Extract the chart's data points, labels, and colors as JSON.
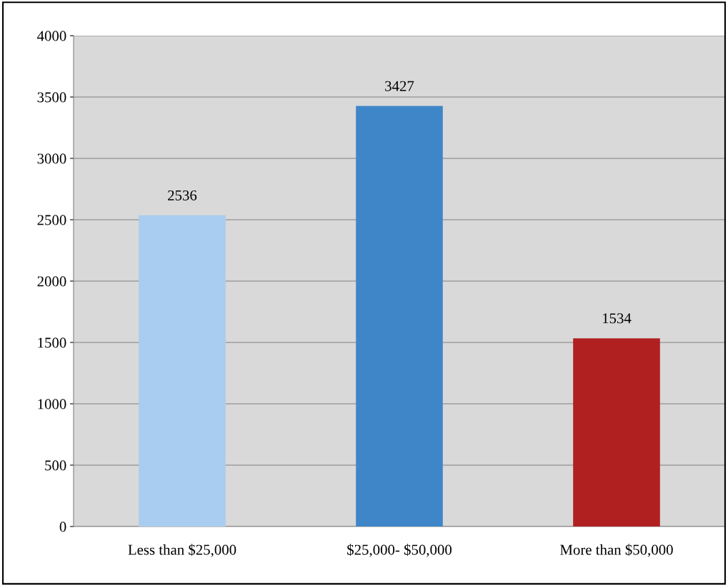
{
  "chart_data": {
    "type": "bar",
    "categories": [
      "Less than $25,000",
      "$25,000- $50,000",
      "More than $50,000"
    ],
    "values": [
      2536,
      3427,
      1534
    ],
    "colors": [
      "#a9cdf0",
      "#3f86c8",
      "#b02020"
    ],
    "ylim": [
      0,
      4000
    ],
    "yticks": [
      0,
      500,
      1000,
      1500,
      2000,
      2500,
      3000,
      3500,
      4000
    ],
    "grid": "y",
    "data_labels": true
  }
}
